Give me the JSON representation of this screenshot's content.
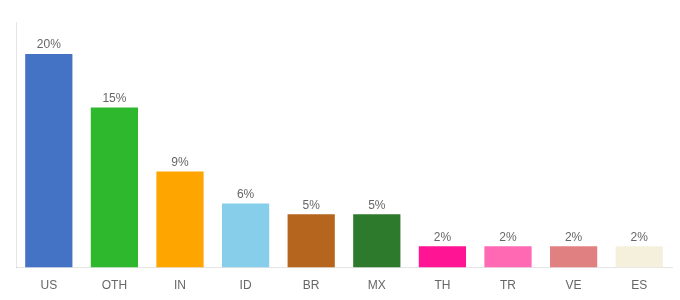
{
  "chart_data": {
    "type": "bar",
    "categories": [
      "US",
      "OTH",
      "IN",
      "ID",
      "BR",
      "MX",
      "TH",
      "TR",
      "VE",
      "ES"
    ],
    "values": [
      20,
      15,
      9,
      6,
      5,
      5,
      2,
      2,
      2,
      2
    ],
    "value_labels": [
      "20%",
      "15%",
      "9%",
      "6%",
      "5%",
      "5%",
      "2%",
      "2%",
      "2%",
      "2%"
    ],
    "colors": [
      "#4472C4",
      "#2DB82D",
      "#FFA500",
      "#87CEEB",
      "#B5651D",
      "#2D7A2D",
      "#FF1493",
      "#FF69B4",
      "#E08080",
      "#F5F0DC"
    ],
    "ylim": [
      0,
      23
    ],
    "grid": false,
    "data_labels": true,
    "tick_labels": "x"
  }
}
